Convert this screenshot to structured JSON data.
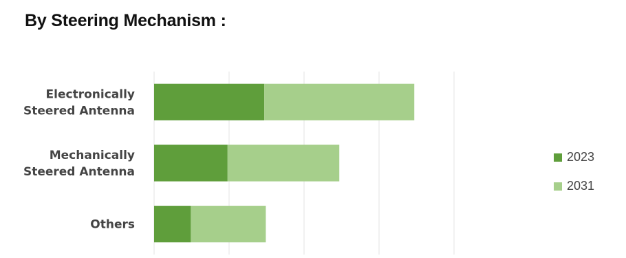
{
  "title": "By Steering Mechanism :",
  "chart_data": {
    "type": "bar",
    "orientation": "horizontal",
    "stacked": true,
    "categories": [
      [
        "Electronically",
        "Steered Antenna"
      ],
      [
        "Mechanically",
        "Steered Antenna"
      ],
      [
        "Others"
      ]
    ],
    "series": [
      {
        "name": "2023",
        "values": [
          1.47,
          0.98,
          0.49
        ],
        "color": "#5f9e3b"
      },
      {
        "name": "2031",
        "values": [
          2.0,
          1.49,
          1.0
        ],
        "color": "#a6cf8b"
      }
    ],
    "xlim": [
      0,
      4
    ],
    "grid": true,
    "legend_position": "right"
  }
}
